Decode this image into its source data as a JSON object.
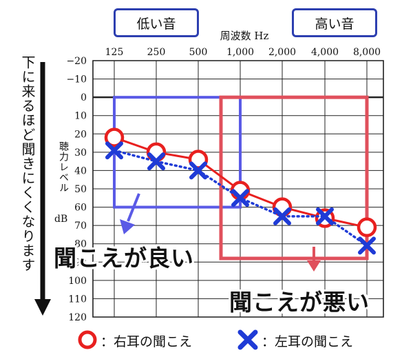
{
  "labels": {
    "low_tone": "低い音",
    "high_tone": "高い音",
    "freq_title": "周波数 Hz",
    "hearing_level": "聴力レベル",
    "hearing_unit": "dB",
    "side_note": "下に来るほど聞きにくくなります",
    "good_hearing": "聞こえが良い",
    "poor_hearing": "聞こえが悪い"
  },
  "legend": {
    "right_ear": "：右耳の聞こえ",
    "left_ear": "：左耳の聞こえ"
  },
  "colors": {
    "right_ear": "#e8201f",
    "left_ear": "#1f3bd6",
    "good_region": "#5a5ae6",
    "poor_region": "#e0505c",
    "tag_border": "#2d3fb0"
  },
  "chart_data": {
    "type": "line",
    "x_ticks": [
      "125",
      "250",
      "500",
      "1,000",
      "2,000",
      "4,000",
      "8,000"
    ],
    "y_ticks": [
      -20,
      -10,
      0,
      10,
      20,
      30,
      40,
      50,
      60,
      70,
      80,
      90,
      100,
      110,
      120
    ],
    "ylim": [
      -20,
      120
    ],
    "series": [
      {
        "ear": "right",
        "marker": "circle",
        "values": [
          22,
          30,
          34,
          51,
          60,
          66,
          71
        ]
      },
      {
        "ear": "left",
        "marker": "cross",
        "values": [
          29,
          35,
          40,
          55,
          65,
          65,
          81
        ]
      }
    ],
    "regions": [
      {
        "kind": "good",
        "x_range": [
          "125",
          "1,000"
        ],
        "y_range": [
          0,
          60
        ]
      },
      {
        "kind": "poor",
        "x_range": [
          "1,000",
          "8,000"
        ],
        "y_range": [
          0,
          88
        ]
      }
    ]
  }
}
